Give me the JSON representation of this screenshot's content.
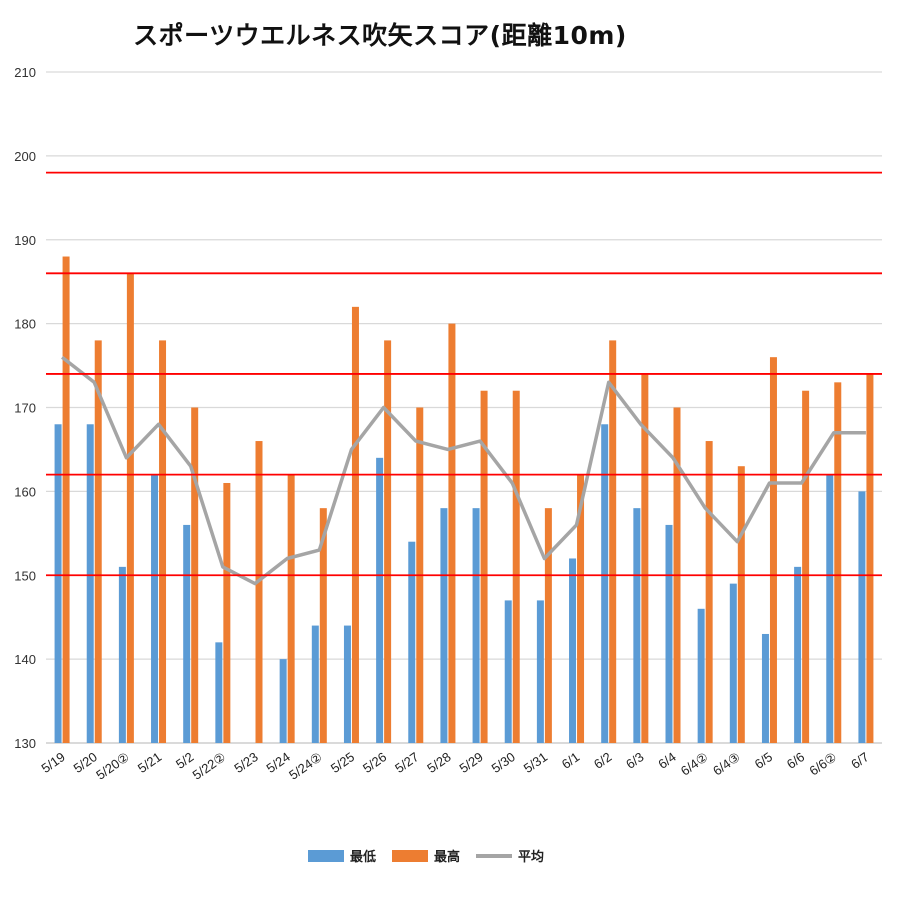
{
  "chart_data": {
    "type": "bar",
    "title": "スポーツウエルネス吹矢スコア(距離10m)",
    "categories": [
      "5/19",
      "5/20",
      "5/20②",
      "5/21",
      "5/2",
      "5/22②",
      "5/23",
      "5/24",
      "5/24②",
      "5/25",
      "5/26",
      "5/27",
      "5/28",
      "5/29",
      "5/30",
      "5/31",
      "6/1",
      "6/2",
      "6/3",
      "6/4",
      "6/4②",
      "6/4③",
      "6/5",
      "6/6",
      "6/6②",
      "6/7"
    ],
    "series": [
      {
        "name": "最低",
        "type": "bar",
        "color": "#5B9BD5",
        "values": [
          168,
          168,
          151,
          162,
          156,
          142,
          null,
          140,
          144,
          144,
          164,
          154,
          158,
          158,
          147,
          147,
          152,
          168,
          158,
          156,
          146,
          149,
          143,
          151,
          162,
          160
        ]
      },
      {
        "name": "最高",
        "type": "bar",
        "color": "#ED7D31",
        "values": [
          188,
          178,
          186,
          178,
          170,
          161,
          166,
          162,
          158,
          182,
          178,
          170,
          180,
          172,
          172,
          158,
          162,
          178,
          174,
          170,
          166,
          163,
          176,
          172,
          173,
          174
        ]
      },
      {
        "name": "平均",
        "type": "line",
        "color": "#A5A5A5",
        "values": [
          176,
          173,
          164,
          168,
          163,
          151,
          149,
          152,
          153,
          165,
          170,
          166,
          165,
          166,
          161,
          152,
          156,
          173,
          168,
          164,
          158,
          154,
          161,
          161,
          167,
          167
        ]
      }
    ],
    "reference_lines": {
      "values": [
        150,
        162,
        174,
        186,
        198
      ],
      "color": "#FF0000"
    },
    "ylim": [
      130,
      210
    ],
    "yticks": [
      130,
      140,
      150,
      160,
      170,
      180,
      190,
      200,
      210
    ],
    "grid": true,
    "legend": "bottom"
  }
}
